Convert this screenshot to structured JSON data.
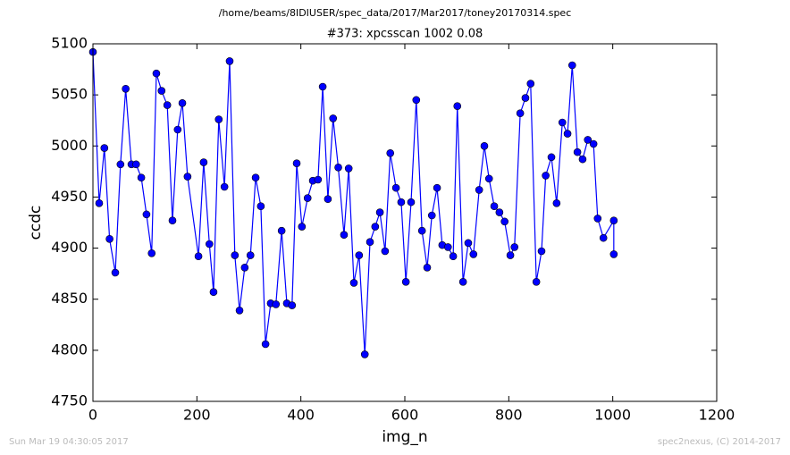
{
  "chart_data": {
    "type": "line",
    "title": "/home/beams/8IDIUSER/spec_data/2017/Mar2017/toney20170314.spec",
    "subtitle": "#373: xpcsscan 1002 0.08",
    "x_label": "img_n",
    "y_label": "ccdc",
    "footer_left": "Sun Mar 19 04:30:05 2017",
    "footer_right": "spec2nexus, (C) 2014-2017",
    "color": "#0000ff",
    "marker": "circle",
    "x": [
      0,
      12,
      22,
      32,
      43,
      53,
      63,
      74,
      83,
      93,
      103,
      113,
      122,
      132,
      143,
      153,
      163,
      172,
      182,
      203,
      213,
      224,
      232,
      242,
      253,
      263,
      273,
      282,
      292,
      303,
      313,
      323,
      332,
      342,
      352,
      363,
      373,
      383,
      392,
      402,
      413,
      423,
      433,
      442,
      452,
      462,
      472,
      483,
      492,
      502,
      512,
      523,
      533,
      543,
      552,
      562,
      572,
      583,
      593,
      602,
      612,
      622,
      633,
      643,
      652,
      662,
      672,
      683,
      693,
      701,
      712,
      722,
      732,
      743,
      753,
      762,
      772,
      782,
      792,
      803,
      811,
      822,
      832,
      842,
      853,
      863,
      871,
      882,
      892,
      903,
      913,
      922,
      932,
      942,
      952,
      963,
      971,
      982,
      1002,
      1002
    ],
    "values": [
      5092,
      4944,
      4998,
      4909,
      4876,
      4982,
      5056,
      4982,
      4982,
      4969,
      4933,
      4895,
      5071,
      5054,
      5040,
      4927,
      5016,
      5042,
      4970,
      4892,
      4984,
      4904,
      4857,
      5026,
      4960,
      5083,
      4893,
      4839,
      4881,
      4893,
      4969,
      4941,
      4806,
      4846,
      4845,
      4917,
      4846,
      4844,
      4983,
      4921,
      4949,
      4966,
      4967,
      5058,
      4948,
      5027,
      4979,
      4913,
      4978,
      4866,
      4893,
      4796,
      4906,
      4921,
      4935,
      4897,
      4993,
      4959,
      4945,
      4867,
      4945,
      5045,
      4917,
      4881,
      4932,
      4959,
      4903,
      4901,
      4892,
      5039,
      4867,
      4905,
      4894,
      4957,
      5000,
      4968,
      4941,
      4935,
      4926,
      4893,
      4901,
      5032,
      5047,
      5061,
      4867,
      4897,
      4971,
      4989,
      4944,
      5023,
      5012,
      5079,
      4994,
      4987,
      5006,
      5002,
      4929,
      4910,
      4927,
      4894
    ],
    "xlim": [
      0,
      1200
    ],
    "xticks": [
      0,
      200,
      400,
      600,
      800,
      1000,
      1200
    ],
    "ylim": [
      4750,
      5100
    ],
    "yticks": [
      4750,
      4800,
      4850,
      4900,
      4950,
      5000,
      5050,
      5100
    ],
    "grid": false
  }
}
